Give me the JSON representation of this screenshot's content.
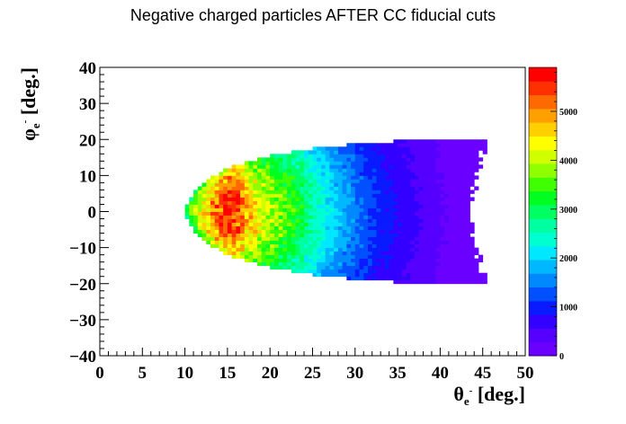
{
  "chart_data": {
    "type": "heatmap",
    "title": "Negative charged particles AFTER CC fiducial cuts",
    "xlabel_main": "θ",
    "xlabel_sub": "e",
    "xlabel_sup": "-",
    "xlabel_unit": " [deg.]",
    "ylabel_main": "φ",
    "ylabel_sub": "e",
    "ylabel_sup": "-",
    "ylabel_unit": " [deg.]",
    "xlim": [
      0,
      50
    ],
    "ylim": [
      -40,
      40
    ],
    "x_ticks": [
      "0",
      "5",
      "10",
      "15",
      "20",
      "25",
      "30",
      "35",
      "40",
      "45",
      "50"
    ],
    "y_ticks": [
      "−40",
      "−30",
      "−20",
      "−10",
      "0",
      "10",
      "20",
      "30",
      "40"
    ],
    "zlim": [
      0,
      5900
    ],
    "colorbar_ticks": [
      "0",
      "1000",
      "2000",
      "3000",
      "4000",
      "5000"
    ],
    "palette": [
      "#6a00ff",
      "#5500ff",
      "#3300ff",
      "#0a1aff",
      "#0050ff",
      "#0088ff",
      "#00b8ff",
      "#00e8ff",
      "#00ffd0",
      "#00ffa0",
      "#00ff60",
      "#00ff20",
      "#40ff00",
      "#90ff00",
      "#d0ff00",
      "#ffff00",
      "#ffd000",
      "#ffa000",
      "#ff6a00",
      "#ff3000",
      "#ff0000"
    ],
    "grid": false,
    "region": {
      "theta_start": 10.0,
      "theta_end": 45.3,
      "phi_edge_profile": [
        [
          10,
          0.5
        ],
        [
          11,
          5
        ],
        [
          12,
          7.5
        ],
        [
          13,
          9.5
        ],
        [
          15,
          12
        ],
        [
          17,
          13.7
        ],
        [
          20,
          15.5
        ],
        [
          25,
          17.5
        ],
        [
          30,
          18.8
        ],
        [
          35,
          19.6
        ],
        [
          40,
          20
        ],
        [
          45,
          20.1
        ]
      ],
      "right_edge_jagged_theta": [
        43.3,
        45.3
      ]
    },
    "intensity_vs_theta": [
      [
        10,
        3000
      ],
      [
        11,
        3800
      ],
      [
        12,
        4400
      ],
      [
        13,
        4900
      ],
      [
        14,
        5300
      ],
      [
        15,
        5700
      ],
      [
        16,
        5600
      ],
      [
        17,
        5000
      ],
      [
        18,
        4500
      ],
      [
        19,
        4300
      ],
      [
        20,
        4000
      ],
      [
        22,
        3500
      ],
      [
        24,
        3000
      ],
      [
        26,
        2400
      ],
      [
        28,
        1900
      ],
      [
        30,
        1500
      ],
      [
        33,
        1000
      ],
      [
        36,
        700
      ],
      [
        40,
        300
      ],
      [
        45,
        100
      ]
    ]
  }
}
